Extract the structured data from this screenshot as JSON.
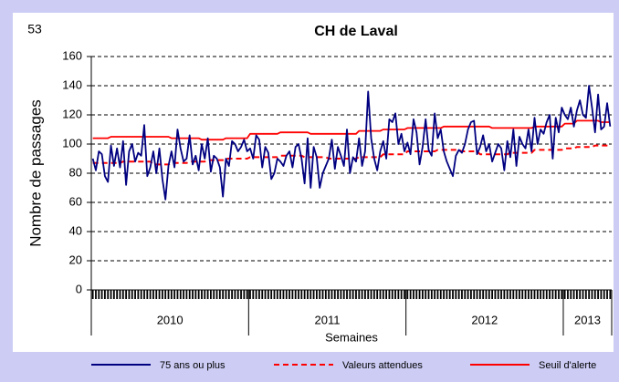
{
  "chart_data": {
    "type": "line",
    "page_number": "53",
    "title": "CH de Laval",
    "ylabel": "Nombre de passages",
    "xlabel": "Semaines",
    "ylim": [
      0,
      160
    ],
    "yticks": [
      0,
      20,
      40,
      60,
      80,
      100,
      120,
      140,
      160
    ],
    "grid": true,
    "legend": "bottom",
    "x_groups": [
      {
        "label": "2010",
        "count": 52
      },
      {
        "label": "2011",
        "count": 52
      },
      {
        "label": "2012",
        "count": 52
      },
      {
        "label": "2013",
        "count": 16
      }
    ],
    "categories": [
      null,
      null,
      null,
      null,
      null,
      null,
      null,
      null,
      null,
      null,
      null,
      null,
      null,
      null,
      null,
      null,
      null,
      null,
      null,
      null,
      null,
      null,
      null,
      null,
      null,
      null,
      null,
      null,
      null,
      null,
      null,
      null,
      null,
      null,
      null,
      null,
      null,
      null,
      null,
      null,
      null,
      null,
      null,
      null,
      null,
      null,
      null,
      null,
      null,
      null,
      null,
      null,
      null,
      null,
      null,
      null,
      null,
      null,
      null,
      null,
      null,
      null,
      null,
      null,
      null,
      null,
      null,
      null,
      null,
      null,
      null,
      null,
      null,
      null,
      null,
      null,
      null,
      null,
      null,
      null,
      null,
      null,
      null,
      null,
      null,
      null,
      null,
      null,
      null,
      null,
      null,
      null,
      null,
      null,
      null,
      null,
      null,
      null,
      null,
      null,
      null,
      null,
      null,
      null,
      null,
      null,
      null,
      null,
      null,
      null,
      null,
      null,
      null,
      null,
      null,
      null,
      null,
      null,
      null,
      null,
      null,
      null,
      null,
      null,
      null,
      null,
      null,
      null,
      null,
      null,
      null,
      null,
      null,
      null,
      null,
      null,
      null,
      null,
      null,
      null,
      null,
      null,
      null,
      null,
      null,
      null,
      null,
      null,
      null,
      null,
      null,
      null,
      null,
      null,
      null,
      null,
      null,
      null,
      null,
      null,
      null,
      null,
      null,
      null,
      null,
      null,
      null,
      null,
      null,
      null,
      null,
      null
    ],
    "series": [
      {
        "name": "75 ans ou plus",
        "color": "#000080",
        "dash": false,
        "values": [
          90,
          82,
          95,
          93,
          78,
          74,
          99,
          85,
          97,
          84,
          102,
          72,
          95,
          100,
          88,
          94,
          92,
          113,
          78,
          84,
          95,
          80,
          97,
          76,
          62,
          85,
          95,
          84,
          110,
          97,
          88,
          90,
          106,
          86,
          92,
          82,
          100,
          90,
          104,
          81,
          92,
          90,
          84,
          64,
          90,
          85,
          102,
          100,
          95,
          98,
          103,
          95,
          97,
          90,
          106,
          103,
          84,
          98,
          94,
          76,
          80,
          90,
          88,
          85,
          92,
          95,
          84,
          98,
          100,
          90,
          73,
          104,
          70,
          98,
          91,
          70,
          80,
          85,
          90,
          103,
          83,
          98,
          92,
          85,
          110,
          80,
          91,
          88,
          104,
          85,
          95,
          136,
          104,
          90,
          82,
          95,
          102,
          90,
          117,
          115,
          121,
          100,
          107,
          95,
          101,
          93,
          117,
          108,
          86,
          98,
          117,
          96,
          92,
          121,
          104,
          110,
          95,
          88,
          83,
          78,
          92,
          96,
          94,
          100,
          110,
          115,
          116,
          93,
          98,
          106,
          95,
          100,
          88,
          94,
          100,
          97,
          82,
          102,
          91,
          110,
          85,
          105,
          100,
          97,
          110,
          95,
          118,
          100,
          110,
          107,
          115,
          120,
          90,
          118,
          108,
          125,
          120,
          117,
          125,
          112,
          123,
          130,
          120,
          118,
          140,
          125,
          108,
          134,
          110,
          112,
          128,
          112
        ]
      },
      {
        "name": "Valeurs attendues",
        "color": "#ff0000",
        "dash": true,
        "values": [
          87,
          87,
          87,
          87,
          87,
          87,
          87,
          87,
          87,
          87,
          88,
          88,
          88,
          88,
          88,
          88,
          88,
          88,
          88,
          88,
          86,
          86,
          86,
          86,
          86,
          86,
          87,
          87,
          87,
          87,
          87,
          87,
          88,
          88,
          88,
          88,
          88,
          88,
          89,
          89,
          89,
          89,
          89,
          89,
          90,
          90,
          90,
          90,
          90,
          90,
          90,
          90,
          91,
          91,
          91,
          91,
          91,
          91,
          91,
          91,
          91,
          91,
          92,
          92,
          92,
          92,
          92,
          92,
          92,
          92,
          91,
          91,
          91,
          91,
          91,
          91,
          91,
          91,
          90,
          90,
          90,
          90,
          90,
          90,
          90,
          90,
          90,
          90,
          91,
          91,
          91,
          91,
          91,
          91,
          91,
          91,
          93,
          93,
          93,
          93,
          93,
          93,
          93,
          93,
          95,
          95,
          95,
          95,
          95,
          95,
          95,
          95,
          95,
          95,
          96,
          96,
          96,
          96,
          96,
          96,
          96,
          96,
          95,
          95,
          95,
          95,
          95,
          95,
          93,
          93,
          93,
          93,
          93,
          93,
          93,
          93,
          93,
          93,
          94,
          94,
          94,
          94,
          94,
          94,
          94,
          94,
          96,
          96,
          96,
          96,
          96,
          96,
          96,
          96,
          96,
          96,
          97,
          97,
          97,
          97,
          98,
          98,
          98,
          98,
          98,
          98,
          99,
          99,
          99,
          99,
          99,
          99
        ]
      },
      {
        "name": "Seuil d'alerte",
        "color": "#ff0000",
        "dash": false,
        "values": [
          104,
          104,
          104,
          104,
          104,
          104,
          105,
          105,
          105,
          105,
          105,
          105,
          105,
          105,
          105,
          105,
          105,
          105,
          105,
          105,
          105,
          105,
          105,
          105,
          105,
          105,
          104,
          104,
          104,
          104,
          104,
          104,
          104,
          104,
          104,
          104,
          103,
          103,
          103,
          103,
          103,
          103,
          103,
          103,
          104,
          104,
          104,
          104,
          104,
          104,
          104,
          104,
          107,
          107,
          107,
          107,
          107,
          107,
          107,
          107,
          107,
          107,
          108,
          108,
          108,
          108,
          108,
          108,
          108,
          108,
          108,
          108,
          107,
          107,
          107,
          107,
          107,
          107,
          107,
          107,
          107,
          107,
          107,
          107,
          107,
          107,
          107,
          107,
          109,
          109,
          109,
          109,
          109,
          109,
          109,
          109,
          110,
          110,
          110,
          110,
          110,
          110,
          110,
          110,
          111,
          111,
          111,
          111,
          111,
          111,
          111,
          111,
          111,
          111,
          111,
          111,
          112,
          112,
          112,
          112,
          112,
          112,
          112,
          112,
          112,
          112,
          112,
          112,
          112,
          112,
          112,
          112,
          111,
          111,
          111,
          111,
          111,
          111,
          111,
          111,
          111,
          111,
          111,
          111,
          111,
          111,
          112,
          112,
          112,
          112,
          112,
          112,
          112,
          112,
          112,
          112,
          114,
          114,
          114,
          114,
          116,
          116,
          116,
          116,
          116,
          116,
          116,
          116,
          115,
          115,
          115,
          115
        ]
      }
    ]
  }
}
